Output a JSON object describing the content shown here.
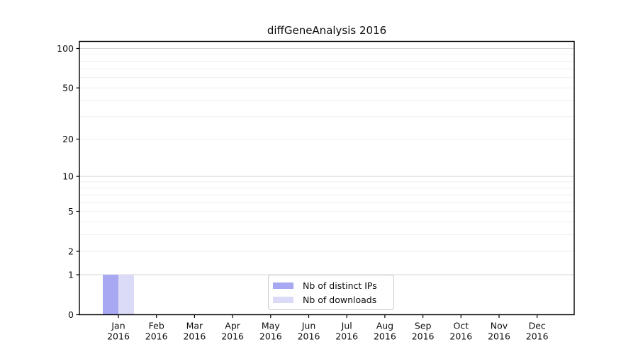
{
  "figure": {
    "kind": "matplotlib-style bar chart"
  },
  "chart_data": {
    "type": "bar",
    "title": "diffGeneAnalysis 2016",
    "categories": [
      "Jan 2016",
      "Feb 2016",
      "Mar 2016",
      "Apr 2016",
      "May 2016",
      "Jun 2016",
      "Jul 2016",
      "Aug 2016",
      "Sep 2016",
      "Oct 2016",
      "Nov 2016",
      "Dec 2016"
    ],
    "series": [
      {
        "name": "Nb of distinct IPs",
        "color": "#a7a7f2",
        "values": [
          1,
          0,
          0,
          0,
          0,
          0,
          0,
          0,
          0,
          0,
          0,
          0
        ]
      },
      {
        "name": "Nb of downloads",
        "color": "#dbdbf8",
        "values": [
          1,
          0,
          0,
          0,
          0,
          0,
          0,
          0,
          0,
          0,
          0,
          0
        ]
      }
    ],
    "xlabel": "",
    "ylabel": "",
    "y_ticks": [
      0,
      1,
      2,
      5,
      10,
      20,
      50,
      100
    ],
    "y_minor_gridlines": [
      2,
      3,
      4,
      5,
      6,
      7,
      8,
      9,
      20,
      30,
      40,
      50,
      60,
      70,
      80,
      90
    ],
    "y_major_gridlines": [
      1,
      10,
      100
    ],
    "y_scale": "log1p",
    "ylim": [
      0,
      113
    ],
    "grid": "horizontal",
    "legend_position": "bottom-center",
    "colors": {
      "spine": "#000000",
      "major_grid": "#d6d6d6",
      "minor_grid": "#efefef",
      "text": "#0d0d0d"
    }
  }
}
